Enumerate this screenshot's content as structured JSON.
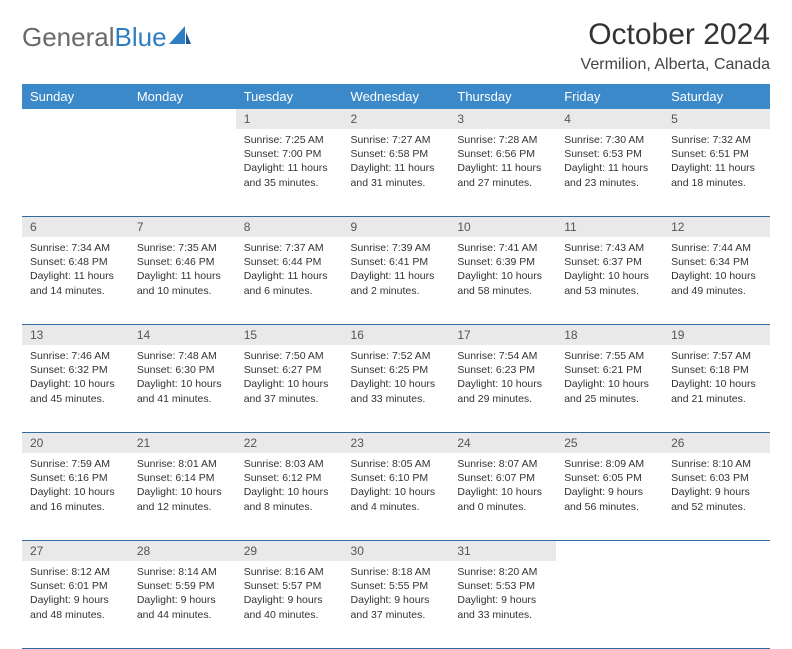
{
  "logo": {
    "text1": "General",
    "text2": "Blue"
  },
  "title": "October 2024",
  "location": "Vermilion, Alberta, Canada",
  "weekdays": [
    "Sunday",
    "Monday",
    "Tuesday",
    "Wednesday",
    "Thursday",
    "Friday",
    "Saturday"
  ],
  "colors": {
    "header_bg": "#3b89c9",
    "header_text": "#ffffff",
    "daynum_bg": "#e9e9e9",
    "border": "#2f6aa0"
  },
  "weeks": [
    [
      {
        "n": "",
        "sr": "",
        "ss": "",
        "dl": ""
      },
      {
        "n": "",
        "sr": "",
        "ss": "",
        "dl": ""
      },
      {
        "n": "1",
        "sr": "Sunrise: 7:25 AM",
        "ss": "Sunset: 7:00 PM",
        "dl": "Daylight: 11 hours and 35 minutes."
      },
      {
        "n": "2",
        "sr": "Sunrise: 7:27 AM",
        "ss": "Sunset: 6:58 PM",
        "dl": "Daylight: 11 hours and 31 minutes."
      },
      {
        "n": "3",
        "sr": "Sunrise: 7:28 AM",
        "ss": "Sunset: 6:56 PM",
        "dl": "Daylight: 11 hours and 27 minutes."
      },
      {
        "n": "4",
        "sr": "Sunrise: 7:30 AM",
        "ss": "Sunset: 6:53 PM",
        "dl": "Daylight: 11 hours and 23 minutes."
      },
      {
        "n": "5",
        "sr": "Sunrise: 7:32 AM",
        "ss": "Sunset: 6:51 PM",
        "dl": "Daylight: 11 hours and 18 minutes."
      }
    ],
    [
      {
        "n": "6",
        "sr": "Sunrise: 7:34 AM",
        "ss": "Sunset: 6:48 PM",
        "dl": "Daylight: 11 hours and 14 minutes."
      },
      {
        "n": "7",
        "sr": "Sunrise: 7:35 AM",
        "ss": "Sunset: 6:46 PM",
        "dl": "Daylight: 11 hours and 10 minutes."
      },
      {
        "n": "8",
        "sr": "Sunrise: 7:37 AM",
        "ss": "Sunset: 6:44 PM",
        "dl": "Daylight: 11 hours and 6 minutes."
      },
      {
        "n": "9",
        "sr": "Sunrise: 7:39 AM",
        "ss": "Sunset: 6:41 PM",
        "dl": "Daylight: 11 hours and 2 minutes."
      },
      {
        "n": "10",
        "sr": "Sunrise: 7:41 AM",
        "ss": "Sunset: 6:39 PM",
        "dl": "Daylight: 10 hours and 58 minutes."
      },
      {
        "n": "11",
        "sr": "Sunrise: 7:43 AM",
        "ss": "Sunset: 6:37 PM",
        "dl": "Daylight: 10 hours and 53 minutes."
      },
      {
        "n": "12",
        "sr": "Sunrise: 7:44 AM",
        "ss": "Sunset: 6:34 PM",
        "dl": "Daylight: 10 hours and 49 minutes."
      }
    ],
    [
      {
        "n": "13",
        "sr": "Sunrise: 7:46 AM",
        "ss": "Sunset: 6:32 PM",
        "dl": "Daylight: 10 hours and 45 minutes."
      },
      {
        "n": "14",
        "sr": "Sunrise: 7:48 AM",
        "ss": "Sunset: 6:30 PM",
        "dl": "Daylight: 10 hours and 41 minutes."
      },
      {
        "n": "15",
        "sr": "Sunrise: 7:50 AM",
        "ss": "Sunset: 6:27 PM",
        "dl": "Daylight: 10 hours and 37 minutes."
      },
      {
        "n": "16",
        "sr": "Sunrise: 7:52 AM",
        "ss": "Sunset: 6:25 PM",
        "dl": "Daylight: 10 hours and 33 minutes."
      },
      {
        "n": "17",
        "sr": "Sunrise: 7:54 AM",
        "ss": "Sunset: 6:23 PM",
        "dl": "Daylight: 10 hours and 29 minutes."
      },
      {
        "n": "18",
        "sr": "Sunrise: 7:55 AM",
        "ss": "Sunset: 6:21 PM",
        "dl": "Daylight: 10 hours and 25 minutes."
      },
      {
        "n": "19",
        "sr": "Sunrise: 7:57 AM",
        "ss": "Sunset: 6:18 PM",
        "dl": "Daylight: 10 hours and 21 minutes."
      }
    ],
    [
      {
        "n": "20",
        "sr": "Sunrise: 7:59 AM",
        "ss": "Sunset: 6:16 PM",
        "dl": "Daylight: 10 hours and 16 minutes."
      },
      {
        "n": "21",
        "sr": "Sunrise: 8:01 AM",
        "ss": "Sunset: 6:14 PM",
        "dl": "Daylight: 10 hours and 12 minutes."
      },
      {
        "n": "22",
        "sr": "Sunrise: 8:03 AM",
        "ss": "Sunset: 6:12 PM",
        "dl": "Daylight: 10 hours and 8 minutes."
      },
      {
        "n": "23",
        "sr": "Sunrise: 8:05 AM",
        "ss": "Sunset: 6:10 PM",
        "dl": "Daylight: 10 hours and 4 minutes."
      },
      {
        "n": "24",
        "sr": "Sunrise: 8:07 AM",
        "ss": "Sunset: 6:07 PM",
        "dl": "Daylight: 10 hours and 0 minutes."
      },
      {
        "n": "25",
        "sr": "Sunrise: 8:09 AM",
        "ss": "Sunset: 6:05 PM",
        "dl": "Daylight: 9 hours and 56 minutes."
      },
      {
        "n": "26",
        "sr": "Sunrise: 8:10 AM",
        "ss": "Sunset: 6:03 PM",
        "dl": "Daylight: 9 hours and 52 minutes."
      }
    ],
    [
      {
        "n": "27",
        "sr": "Sunrise: 8:12 AM",
        "ss": "Sunset: 6:01 PM",
        "dl": "Daylight: 9 hours and 48 minutes."
      },
      {
        "n": "28",
        "sr": "Sunrise: 8:14 AM",
        "ss": "Sunset: 5:59 PM",
        "dl": "Daylight: 9 hours and 44 minutes."
      },
      {
        "n": "29",
        "sr": "Sunrise: 8:16 AM",
        "ss": "Sunset: 5:57 PM",
        "dl": "Daylight: 9 hours and 40 minutes."
      },
      {
        "n": "30",
        "sr": "Sunrise: 8:18 AM",
        "ss": "Sunset: 5:55 PM",
        "dl": "Daylight: 9 hours and 37 minutes."
      },
      {
        "n": "31",
        "sr": "Sunrise: 8:20 AM",
        "ss": "Sunset: 5:53 PM",
        "dl": "Daylight: 9 hours and 33 minutes."
      },
      {
        "n": "",
        "sr": "",
        "ss": "",
        "dl": ""
      },
      {
        "n": "",
        "sr": "",
        "ss": "",
        "dl": ""
      }
    ]
  ]
}
